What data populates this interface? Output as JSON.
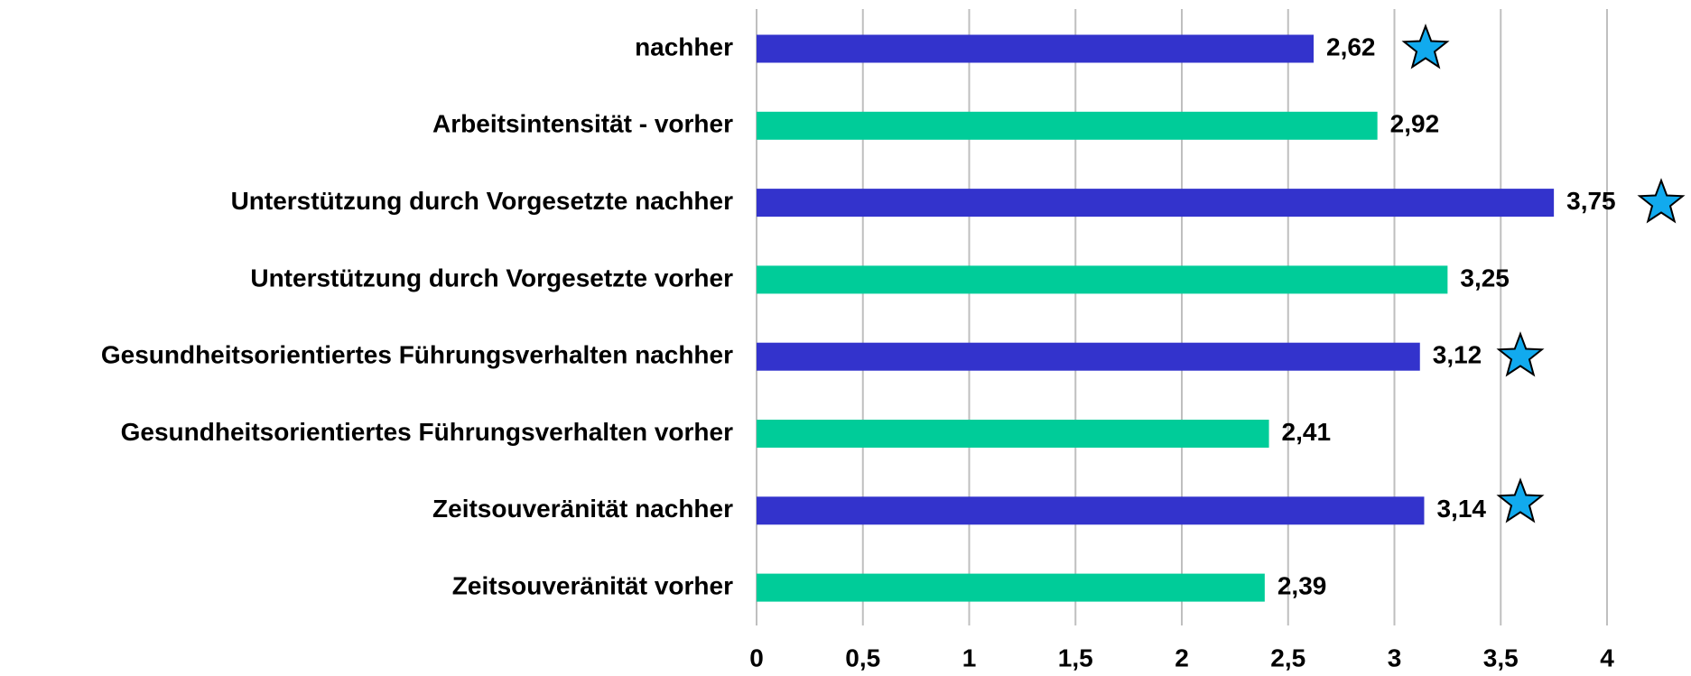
{
  "chart_data": {
    "type": "hbar",
    "categories": [
      "nachher",
      "Arbeitsintensität - vorher",
      "Unterstützung durch Vorgesetzte nachher",
      "Unterstützung durch Vorgesetzte vorher",
      "Gesundheitsorientiertes Führungsverhalten nachher",
      "Gesundheitsorientiertes Führungsverhalten vorher",
      "Zeitsouveränität nachher",
      "Zeitsouveränität vorher"
    ],
    "values": [
      2.62,
      2.92,
      3.75,
      3.25,
      3.12,
      2.41,
      3.14,
      2.39
    ],
    "value_labels": [
      "2,62",
      "2,92",
      "3,75",
      "3,25",
      "3,12",
      "2,41",
      "3,14",
      "2,39"
    ],
    "colors": [
      "#3333cc",
      "#00cc99",
      "#3333cc",
      "#00cc99",
      "#3333cc",
      "#00cc99",
      "#3333cc",
      "#00cc99"
    ],
    "xlim": [
      0,
      4
    ],
    "xticks": [
      0,
      {
        "value": 0.5,
        "label": "0,5"
      },
      1,
      {
        "value": 1.5,
        "label": "1,5"
      },
      2,
      {
        "value": 2.5,
        "label": "2,5"
      },
      3,
      {
        "value": 3.5,
        "label": "3,5"
      },
      4
    ],
    "grid": true
  }
}
